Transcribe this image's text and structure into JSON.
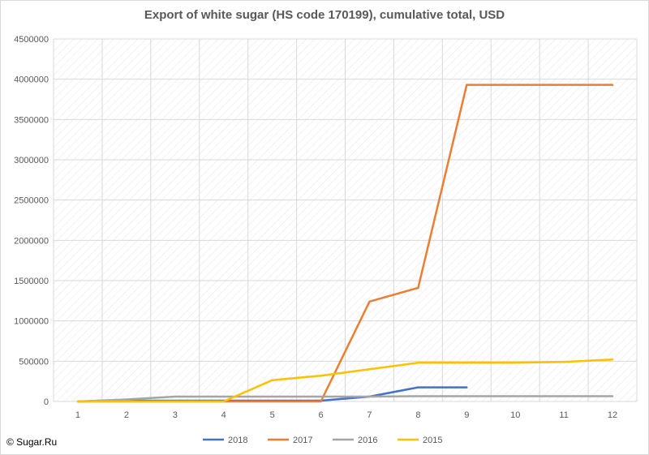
{
  "chart_data": {
    "type": "line",
    "title": "Export of white sugar (HS code 170199), cumulative total, USD",
    "xlabel": "",
    "ylabel": "",
    "ylim": [
      0,
      4500000
    ],
    "ytick_step": 500000,
    "x": [
      1,
      2,
      3,
      4,
      5,
      6,
      7,
      8,
      9,
      10,
      11,
      12
    ],
    "series": [
      {
        "name": "2018",
        "color": "#4472c4",
        "values": [
          0,
          10000,
          10000,
          10000,
          10000,
          10000,
          60000,
          175000,
          175000,
          null,
          null,
          null
        ]
      },
      {
        "name": "2017",
        "color": "#ed7d31",
        "values": [
          0,
          0,
          0,
          0,
          0,
          0,
          1240000,
          1410000,
          3930000,
          3930000,
          3930000,
          3930000
        ]
      },
      {
        "name": "2016",
        "color": "#a5a5a5",
        "values": [
          0,
          25000,
          60000,
          60000,
          60000,
          60000,
          60000,
          65000,
          65000,
          65000,
          65000,
          65000
        ]
      },
      {
        "name": "2015",
        "color": "#ffc000",
        "values": [
          0,
          0,
          0,
          0,
          265000,
          320000,
          400000,
          480000,
          480000,
          480000,
          490000,
          520000
        ]
      }
    ],
    "grid": true,
    "legend_position": "bottom"
  },
  "copyright": "© Sugar.Ru"
}
